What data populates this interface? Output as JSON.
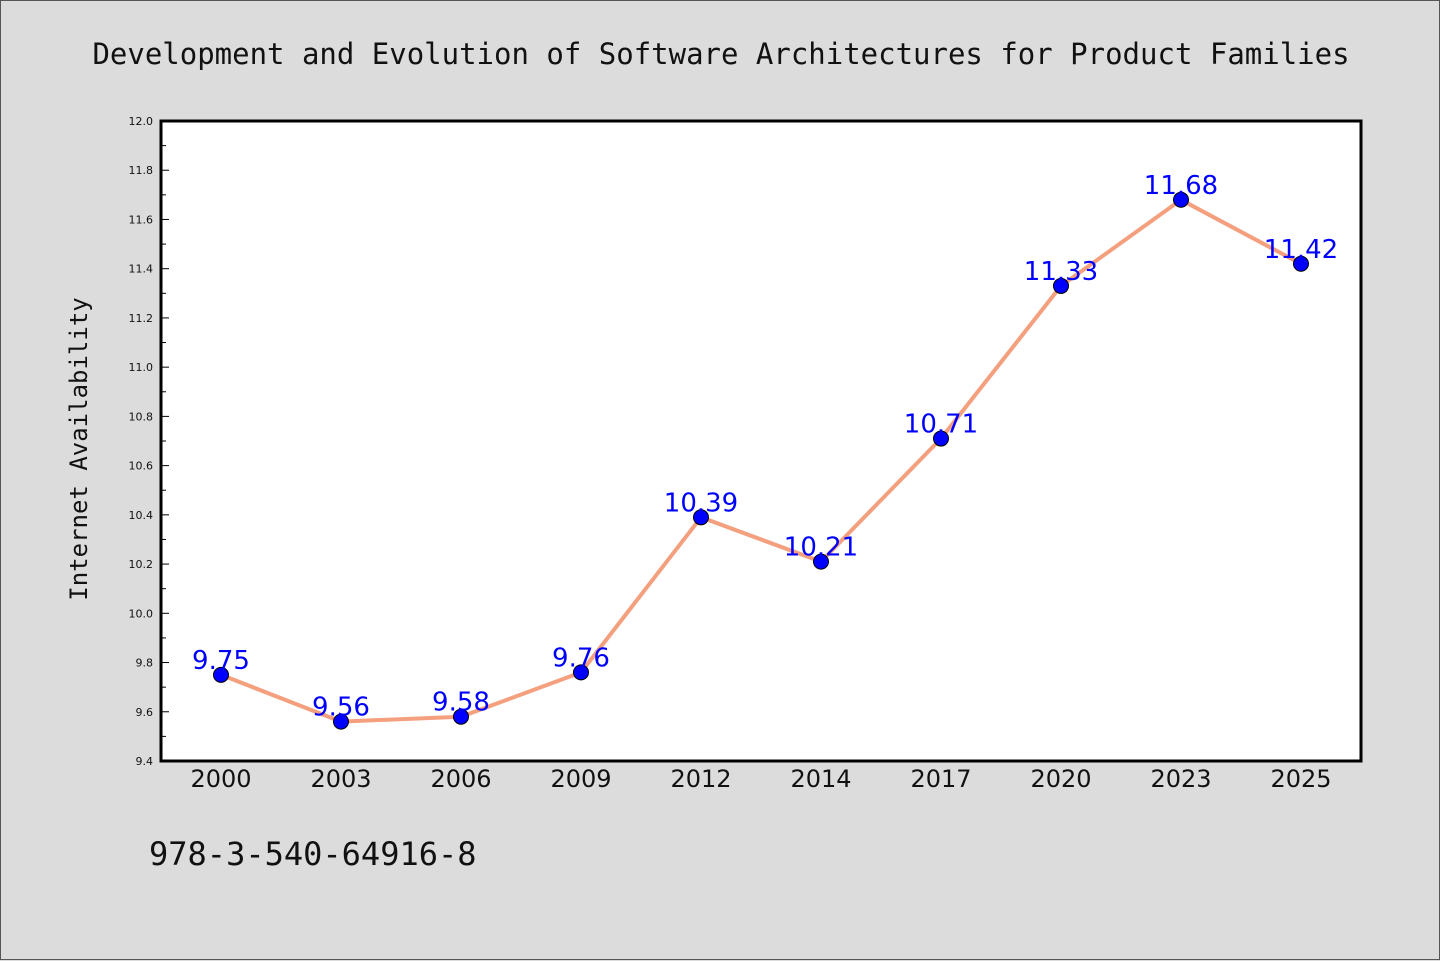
{
  "chart_data": {
    "type": "line",
    "title": "Development and Evolution of Software Architectures for Product Families",
    "xlabel": "",
    "ylabel": "Internet Availability",
    "categories": [
      "2000",
      "2003",
      "2006",
      "2009",
      "2012",
      "2014",
      "2017",
      "2020",
      "2023",
      "2025"
    ],
    "series": [
      {
        "values": [
          9.75,
          9.56,
          9.58,
          9.76,
          10.39,
          10.21,
          10.71,
          11.33,
          11.68,
          11.42
        ],
        "data_labels": [
          "9.75",
          "9.56",
          "9.58",
          "9.76",
          "10.39",
          "10.21",
          "10.71",
          "11.33",
          "11.68",
          "11.42"
        ],
        "line_color": "#f4a07e",
        "marker_color": "#0000ff"
      }
    ],
    "ylim": [
      9.4,
      12.0
    ],
    "yticks": [
      "9.4",
      "9.6",
      "9.8",
      "10.0",
      "10.2",
      "10.4",
      "10.6",
      "10.8",
      "11.0",
      "11.2",
      "11.4",
      "11.6",
      "11.8",
      "12.0"
    ],
    "grid": false,
    "legend": "none",
    "label_color": "#0000ff",
    "background_color": "#dcdcdc",
    "plot_background_color": "#ffffff"
  },
  "footnote": "978-3-540-64916-8"
}
